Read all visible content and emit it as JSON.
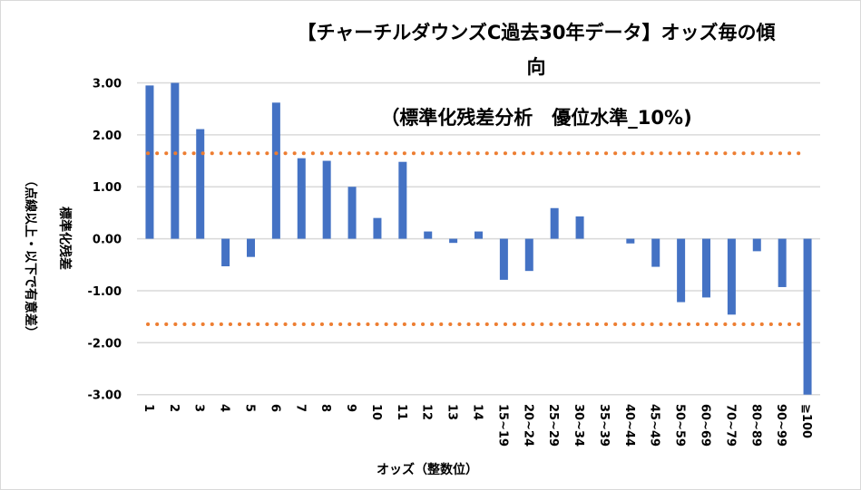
{
  "chart_data": {
    "type": "bar",
    "title_line1": "【チャーチルダウンズC過去30年データ】オッズ毎の傾",
    "title_line1b": "向",
    "title_line2": "（標準化残差分析　優位水準_10%)",
    "xlabel": "オッズ（整数位）",
    "ylabel_line1": "標準化残差",
    "ylabel_line2": "（点線以上・以下で有意差）",
    "ylim": [
      -3,
      3
    ],
    "yticks": [
      "3.00",
      "2.00",
      "1.00",
      "0.00",
      "-1.00",
      "-2.00",
      "-3.00"
    ],
    "ytick_values": [
      3,
      2,
      1,
      0,
      -1,
      -2,
      -3
    ],
    "grid": true,
    "categories": [
      "1",
      "2",
      "3",
      "4",
      "5",
      "6",
      "7",
      "8",
      "9",
      "10",
      "11",
      "12",
      "13",
      "14",
      "15~19",
      "20~24",
      "25~29",
      "30~34",
      "35~39",
      "40~44",
      "45~49",
      "50~59",
      "60~69",
      "70~79",
      "80~89",
      "90~99",
      "≧100"
    ],
    "values": [
      2.95,
      3.0,
      2.11,
      -0.53,
      -0.35,
      2.62,
      1.55,
      1.5,
      1.0,
      0.4,
      1.48,
      0.14,
      -0.08,
      0.14,
      -0.79,
      -0.62,
      0.59,
      0.43,
      0,
      -0.09,
      -0.54,
      -1.22,
      -1.13,
      -1.46,
      -0.24,
      -0.93,
      -3.0
    ],
    "thresholds": [
      1.645,
      -1.645
    ],
    "bar_color": "#4472C4",
    "threshold_color": "#ED7D31",
    "grid_color": "#D9D9D9"
  }
}
